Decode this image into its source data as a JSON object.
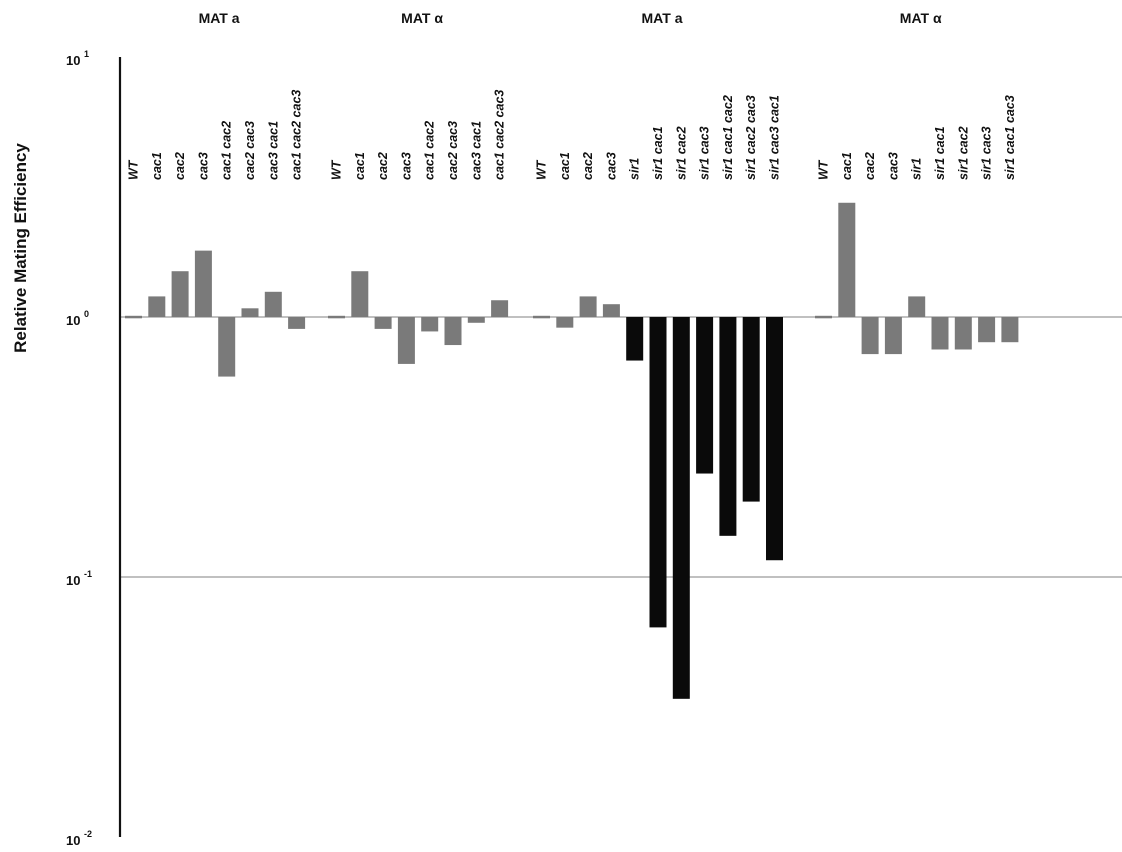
{
  "chart_data": {
    "type": "bar",
    "ylabel": "Relative Mating Efficiency",
    "yscale": "log",
    "ylim": [
      0.01,
      10
    ],
    "yticks": [
      {
        "value": 10,
        "base": "10",
        "exp": "1"
      },
      {
        "value": 1,
        "base": "10",
        "exp": "0"
      },
      {
        "value": 0.1,
        "base": "10",
        "exp": "-1"
      },
      {
        "value": 0.01,
        "base": "10",
        "exp": "-2"
      }
    ],
    "reference_lines": [
      1,
      0.1
    ],
    "colors": {
      "cac_bar": "#7a7a7a",
      "sir_bar": "#0a0a0a",
      "axis": "#111111",
      "refline": "#9a9a9a"
    },
    "groups": [
      {
        "title": "MAT a",
        "bars": [
          {
            "label": "WT",
            "value": 0.98,
            "fill": "gray"
          },
          {
            "label": "cac1",
            "value": 1.2,
            "fill": "gray"
          },
          {
            "label": "cac2",
            "value": 1.5,
            "fill": "gray"
          },
          {
            "label": "cac3",
            "value": 1.8,
            "fill": "gray"
          },
          {
            "label": "cac1 cac2",
            "value": 0.59,
            "fill": "gray"
          },
          {
            "label": "cac2 cac3",
            "value": 1.08,
            "fill": "gray"
          },
          {
            "label": "cac3 cac1",
            "value": 1.25,
            "fill": "gray"
          },
          {
            "label": "cac1 cac2 cac3",
            "value": 0.9,
            "fill": "gray"
          }
        ]
      },
      {
        "title": "MAT α",
        "bars": [
          {
            "label": "WT",
            "value": 0.98,
            "fill": "gray"
          },
          {
            "label": "cac1",
            "value": 1.5,
            "fill": "gray"
          },
          {
            "label": "cac2",
            "value": 0.9,
            "fill": "gray"
          },
          {
            "label": "cac3",
            "value": 0.66,
            "fill": "gray"
          },
          {
            "label": "cac1 cac2",
            "value": 0.88,
            "fill": "gray"
          },
          {
            "label": "cac2 cac3",
            "value": 0.78,
            "fill": "gray"
          },
          {
            "label": "cac3 cac1",
            "value": 0.95,
            "fill": "gray"
          },
          {
            "label": "cac1 cac2 cac3",
            "value": 1.16,
            "fill": "gray"
          }
        ]
      },
      {
        "title": "MAT a",
        "bars": [
          {
            "label": "WT",
            "value": 0.98,
            "fill": "gray"
          },
          {
            "label": "cac1",
            "value": 0.91,
            "fill": "gray"
          },
          {
            "label": "cac2",
            "value": 1.2,
            "fill": "gray"
          },
          {
            "label": "cac3",
            "value": 1.12,
            "fill": "gray"
          },
          {
            "label": "sir1",
            "value": 0.68,
            "fill": "black"
          },
          {
            "label": "sir1 cac1",
            "value": 0.064,
            "fill": "black"
          },
          {
            "label": "sir1 cac2",
            "value": 0.034,
            "fill": "black"
          },
          {
            "label": "sir1 cac3",
            "value": 0.25,
            "fill": "black"
          },
          {
            "label": "sir1 cac1 cac2",
            "value": 0.144,
            "fill": "black"
          },
          {
            "label": "sir1 cac2 cac3",
            "value": 0.195,
            "fill": "black"
          },
          {
            "label": "sir1 cac3 cac1",
            "value": 0.116,
            "fill": "black"
          }
        ]
      },
      {
        "title": "MAT α",
        "bars": [
          {
            "label": "WT",
            "value": 0.98,
            "fill": "gray"
          },
          {
            "label": "cac1",
            "value": 2.75,
            "fill": "gray"
          },
          {
            "label": "cac2",
            "value": 0.72,
            "fill": "gray"
          },
          {
            "label": "cac3",
            "value": 0.72,
            "fill": "gray"
          },
          {
            "label": "sir1",
            "value": 1.2,
            "fill": "gray"
          },
          {
            "label": "sir1 cac1",
            "value": 0.75,
            "fill": "gray"
          },
          {
            "label": "sir1 cac2",
            "value": 0.75,
            "fill": "gray"
          },
          {
            "label": "sir1 cac3",
            "value": 0.8,
            "fill": "gray"
          },
          {
            "label": "sir1 cac1 cac3",
            "value": 0.8,
            "fill": "gray"
          }
        ]
      }
    ]
  }
}
